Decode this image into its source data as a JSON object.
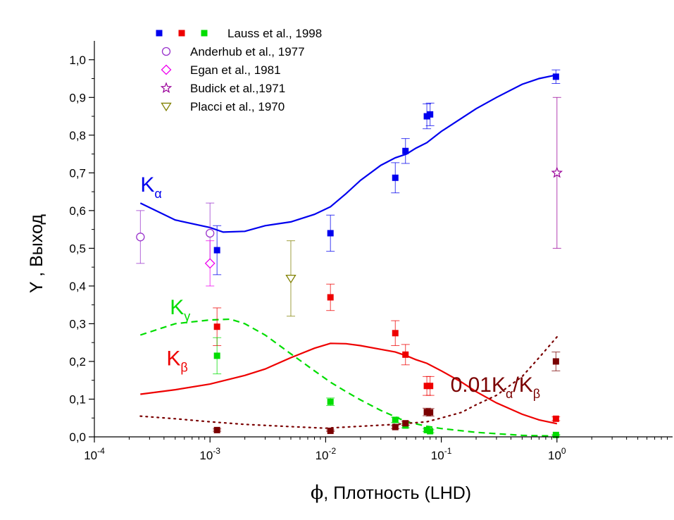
{
  "chart_data": {
    "type": "scatter",
    "xlabel_symbol": "ϕ",
    "xlabel_text": "Плотность (LHD)",
    "ylabel": "Y , Выход",
    "x_scale": "log",
    "xlim": [
      0.0001,
      10
    ],
    "ylim": [
      0.0,
      1.05
    ],
    "grid": false,
    "legend_placement": "top-left",
    "x_ticks": [
      {
        "value": 0.0001,
        "base": "10",
        "exp": "-4"
      },
      {
        "value": 0.001,
        "base": "10",
        "exp": "-3"
      },
      {
        "value": 0.01,
        "base": "10",
        "exp": "-2"
      },
      {
        "value": 0.1,
        "base": "10",
        "exp": "-1"
      },
      {
        "value": 1,
        "base": "10",
        "exp": "0"
      }
    ],
    "y_ticks": [
      {
        "value": 0.0,
        "label": "0,0"
      },
      {
        "value": 0.1,
        "label": "0,1"
      },
      {
        "value": 0.2,
        "label": "0,2"
      },
      {
        "value": 0.3,
        "label": "0,3"
      },
      {
        "value": 0.4,
        "label": "0,4"
      },
      {
        "value": 0.5,
        "label": "0,5"
      },
      {
        "value": 0.6,
        "label": "0,6"
      },
      {
        "value": 0.7,
        "label": "0,7"
      },
      {
        "value": 0.8,
        "label": "0,8"
      },
      {
        "value": 0.9,
        "label": "0,9"
      },
      {
        "value": 1.0,
        "label": "1,0"
      }
    ],
    "legend": [
      {
        "label": "Lauss et al., 1998",
        "markers": [
          {
            "shape": "square",
            "color": "#0000ee"
          },
          {
            "shape": "square",
            "color": "#ee0000"
          },
          {
            "shape": "square",
            "color": "#00dd00"
          }
        ]
      },
      {
        "label": "Anderhub et al., 1977",
        "markers": [
          {
            "shape": "circle-open",
            "color": "#9933cc"
          }
        ]
      },
      {
        "label": "Egan et al.,  1981",
        "markers": [
          {
            "shape": "diamond-open",
            "color": "#ee00ee"
          }
        ]
      },
      {
        "label": "Budick et al.,1971",
        "markers": [
          {
            "shape": "star-open",
            "color": "#990099"
          }
        ]
      },
      {
        "label": "Placci et al., 1970",
        "markers": [
          {
            "shape": "triangle-down-open",
            "color": "#808000"
          }
        ]
      }
    ],
    "colors": {
      "kalpha": "#0000ee",
      "kbeta": "#ee0000",
      "kgamma": "#00dd00",
      "ratio": "#7a0000",
      "anderhub": "#9933cc",
      "egan": "#ee00ee",
      "budick": "#990099",
      "placci": "#808000"
    },
    "curves": [
      {
        "name": "Kα",
        "color": "#0000ee",
        "style": "solid",
        "x": [
          0.00025,
          0.0005,
          0.001,
          0.0013,
          0.002,
          0.003,
          0.005,
          0.008,
          0.011,
          0.015,
          0.02,
          0.03,
          0.04,
          0.05,
          0.06,
          0.075,
          0.1,
          0.15,
          0.2,
          0.3,
          0.5,
          0.7,
          1.0
        ],
        "y": [
          0.62,
          0.575,
          0.555,
          0.543,
          0.545,
          0.56,
          0.57,
          0.59,
          0.61,
          0.645,
          0.68,
          0.72,
          0.74,
          0.75,
          0.765,
          0.78,
          0.81,
          0.845,
          0.87,
          0.9,
          0.935,
          0.95,
          0.96
        ]
      },
      {
        "name": "Kβ",
        "color": "#ee0000",
        "style": "solid",
        "x": [
          0.00025,
          0.0005,
          0.001,
          0.002,
          0.003,
          0.005,
          0.008,
          0.011,
          0.015,
          0.02,
          0.03,
          0.04,
          0.05,
          0.06,
          0.075,
          0.1,
          0.15,
          0.2,
          0.3,
          0.5,
          0.7,
          1.0
        ],
        "y": [
          0.113,
          0.125,
          0.14,
          0.163,
          0.18,
          0.21,
          0.235,
          0.248,
          0.247,
          0.242,
          0.232,
          0.225,
          0.215,
          0.205,
          0.195,
          0.175,
          0.145,
          0.12,
          0.09,
          0.06,
          0.045,
          0.035
        ]
      },
      {
        "name": "Kγ",
        "color": "#00dd00",
        "style": "dashed",
        "x": [
          0.00025,
          0.0005,
          0.001,
          0.0015,
          0.002,
          0.003,
          0.005,
          0.008,
          0.011,
          0.015,
          0.02,
          0.03,
          0.05,
          0.075,
          0.1,
          0.2,
          0.5,
          1.0
        ],
        "y": [
          0.27,
          0.3,
          0.31,
          0.312,
          0.3,
          0.27,
          0.22,
          0.175,
          0.145,
          0.12,
          0.098,
          0.07,
          0.04,
          0.028,
          0.022,
          0.012,
          0.004,
          0.002
        ]
      },
      {
        "name": "0.01Kα/Kβ",
        "color": "#7a0000",
        "style": "dotted",
        "x": [
          0.00025,
          0.0005,
          0.001,
          0.002,
          0.005,
          0.01,
          0.02,
          0.04,
          0.075,
          0.1,
          0.15,
          0.2,
          0.3,
          0.5,
          0.7,
          1.0
        ],
        "y": [
          0.055,
          0.048,
          0.04,
          0.033,
          0.027,
          0.023,
          0.028,
          0.033,
          0.04,
          0.05,
          0.065,
          0.085,
          0.11,
          0.16,
          0.21,
          0.265
        ]
      }
    ],
    "series": [
      {
        "source": "Lauss Kα",
        "marker": "square",
        "color": "#0000ee",
        "points": [
          {
            "x": 0.00115,
            "y": 0.495,
            "err": 0.065
          },
          {
            "x": 0.011,
            "y": 0.54,
            "err": 0.048
          },
          {
            "x": 0.04,
            "y": 0.687,
            "err": 0.04
          },
          {
            "x": 0.049,
            "y": 0.758,
            "err": 0.033
          },
          {
            "x": 0.075,
            "y": 0.85,
            "err": 0.033
          },
          {
            "x": 0.08,
            "y": 0.855,
            "err": 0.03
          },
          {
            "x": 0.98,
            "y": 0.955,
            "err": 0.018
          }
        ]
      },
      {
        "source": "Lauss Kβ",
        "marker": "square",
        "color": "#ee0000",
        "points": [
          {
            "x": 0.00115,
            "y": 0.292,
            "err": 0.05
          },
          {
            "x": 0.011,
            "y": 0.37,
            "err": 0.035
          },
          {
            "x": 0.04,
            "y": 0.275,
            "err": 0.033
          },
          {
            "x": 0.049,
            "y": 0.218,
            "err": 0.027
          },
          {
            "x": 0.075,
            "y": 0.135,
            "err": 0.025
          },
          {
            "x": 0.08,
            "y": 0.135,
            "err": 0.025
          },
          {
            "x": 0.98,
            "y": 0.048,
            "err": 0.005
          }
        ]
      },
      {
        "source": "Lauss Kγ",
        "marker": "square",
        "color": "#00dd00",
        "points": [
          {
            "x": 0.00115,
            "y": 0.215,
            "err": 0.048
          },
          {
            "x": 0.011,
            "y": 0.093,
            "err": 0.01
          },
          {
            "x": 0.04,
            "y": 0.045,
            "err": 0.007
          },
          {
            "x": 0.049,
            "y": 0.03,
            "err": 0.006
          },
          {
            "x": 0.075,
            "y": 0.018,
            "err": 0.004
          },
          {
            "x": 0.08,
            "y": 0.015,
            "err": 0.004
          },
          {
            "x": 0.98,
            "y": 0.005,
            "err": 0.001
          }
        ]
      },
      {
        "source": "Lauss 0.01Kα/Kβ",
        "marker": "square",
        "color": "#7a0000",
        "points": [
          {
            "x": 0.00115,
            "y": 0.018,
            "err": 0.003
          },
          {
            "x": 0.011,
            "y": 0.016,
            "err": 0.002
          },
          {
            "x": 0.04,
            "y": 0.026,
            "err": 0.004
          },
          {
            "x": 0.049,
            "y": 0.036,
            "err": 0.005
          },
          {
            "x": 0.075,
            "y": 0.066,
            "err": 0.01
          },
          {
            "x": 0.08,
            "y": 0.065,
            "err": 0.01
          },
          {
            "x": 0.98,
            "y": 0.2,
            "err": 0.025
          }
        ]
      },
      {
        "source": "Anderhub et al., 1977",
        "marker": "circle-open",
        "color": "#9933cc",
        "points": [
          {
            "x": 0.00025,
            "y": 0.53,
            "err": 0.07
          },
          {
            "x": 0.001,
            "y": 0.54,
            "err": 0.08
          }
        ]
      },
      {
        "source": "Egan et al., 1981",
        "marker": "diamond-open",
        "color": "#ee00ee",
        "points": [
          {
            "x": 0.001,
            "y": 0.46,
            "err": 0.06
          }
        ]
      },
      {
        "source": "Budick et al., 1971",
        "marker": "star-open",
        "color": "#990099",
        "points": [
          {
            "x": 1.0,
            "y": 0.7,
            "err": 0.2
          }
        ]
      },
      {
        "source": "Placci et al., 1970",
        "marker": "triangle-down-open",
        "color": "#808000",
        "points": [
          {
            "x": 0.005,
            "y": 0.42,
            "err": 0.1
          }
        ]
      }
    ],
    "annotations": [
      {
        "id": "kalpha",
        "main": "K",
        "sub": "α",
        "color": "#0000ee",
        "x": 0.00025,
        "y": 0.65
      },
      {
        "id": "kgamma",
        "main": "K",
        "sub": "γ",
        "color": "#00dd00",
        "x": 0.00045,
        "y": 0.325
      },
      {
        "id": "kbeta",
        "main": "K",
        "sub": "β",
        "color": "#ee0000",
        "x": 0.00042,
        "y": 0.19
      },
      {
        "id": "ratio",
        "prefix": "0.01K",
        "sub1": "α",
        "mid": "/K",
        "sub2": "β",
        "color": "#7a0000",
        "x": 0.12,
        "y": 0.12
      }
    ]
  }
}
